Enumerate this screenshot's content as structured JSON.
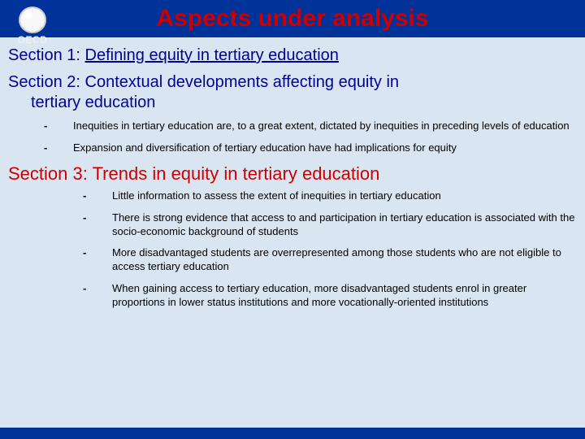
{
  "colors": {
    "slide_bg": "#003399",
    "content_bg": "#d9e6f2",
    "title_color": "#cc0000",
    "section_color": "#000099",
    "section3_color": "#cc0000",
    "bullet_text": "#000000"
  },
  "logo": {
    "text": "OECD"
  },
  "title": "Aspects under analysis",
  "section1": {
    "label": "Section 1:",
    "text": "Defining equity in tertiary education"
  },
  "section2": {
    "label": "Section 2:",
    "text": "Contextual developments affecting equity in",
    "text_line2": "tertiary education",
    "bullets": [
      "Inequities in tertiary education are, to a great extent, dictated by inequities in preceding levels of education",
      "Expansion and diversification of tertiary education have had implications for equity"
    ]
  },
  "section3": {
    "label": "Section 3:",
    "text": "Trends in equity in tertiary education",
    "bullets": [
      "Little information to assess the extent of inequities in tertiary education",
      "There is strong evidence that access to and participation in tertiary education is associated with the socio-economic background of students",
      "More disadvantaged students are overrepresented among those students who are not eligible to access tertiary education",
      "When gaining access to tertiary education, more disadvantaged students enrol in greater proportions in lower status institutions and more vocationally-oriented institutions"
    ]
  }
}
